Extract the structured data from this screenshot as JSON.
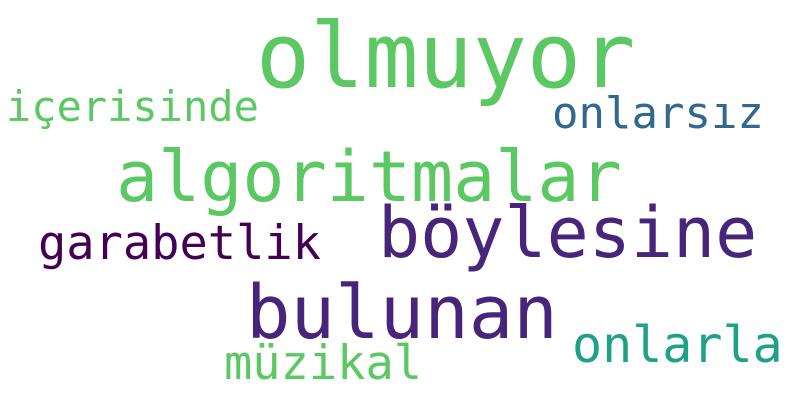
{
  "words": [
    {
      "text": "olmuyor",
      "color": "#5cc863"
    },
    {
      "text": "algoritmalar",
      "color": "#5cc863"
    },
    {
      "text": "böylesine",
      "color": "#46257a"
    },
    {
      "text": "bulunan",
      "color": "#46257a"
    },
    {
      "text": "garabetlik",
      "color": "#440154"
    },
    {
      "text": "içerisinde",
      "color": "#5cc863"
    },
    {
      "text": "onlarsız",
      "color": "#31688e"
    },
    {
      "text": "müzikal",
      "color": "#5cc863"
    },
    {
      "text": "onlarla",
      "color": "#1fa187"
    }
  ]
}
